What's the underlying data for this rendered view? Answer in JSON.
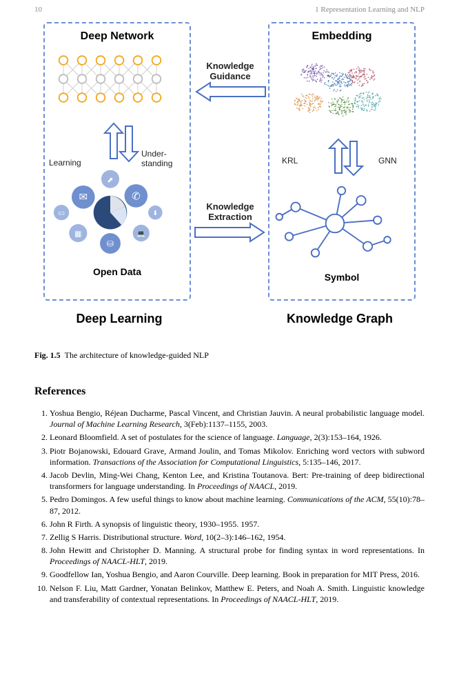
{
  "header": {
    "page_num": "10",
    "chapter": "1   Representation Learning and NLP"
  },
  "figure": {
    "panel_left_top": "Deep Network",
    "panel_left_bottom": "Open Data",
    "panel_right_top": "Embedding",
    "panel_right_bottom": "Symbol",
    "big_left": "Deep Learning",
    "big_right": "Knowledge Graph",
    "arrow_top_label1": "Knowledge",
    "arrow_top_label2": "Guidance",
    "arrow_bottom_label1": "Knowledge",
    "arrow_bottom_label2": "Extraction",
    "left_side_a": "Learning",
    "left_side_b1": "Under-",
    "left_side_b2": "standing",
    "right_side_a": "KRL",
    "right_side_b": "GNN",
    "colors": {
      "panel_border": "#6b8dd6",
      "nn_orange": "#f4a616",
      "nn_grey": "#bbbbbb",
      "arrow_stroke": "#4a6fc3",
      "icon_blue": "#5b7bc0",
      "icon_dark": "#2b4a7a",
      "embed_clusters": [
        "#6b4fa0",
        "#3f74b5",
        "#d28a3a",
        "#568c3f",
        "#b14d63",
        "#4aa1a8"
      ]
    },
    "opendata_icons": [
      "tablet",
      "mail",
      "chart",
      "phone",
      "grid",
      "pie",
      "download",
      "db",
      "laptop",
      "page"
    ]
  },
  "caption": {
    "label": "Fig. 1.5",
    "text": "The architecture of knowledge-guided NLP"
  },
  "refs_heading": "References",
  "refs": [
    {
      "n": 1,
      "authors": "Yoshua Bengio, Réjean Ducharme, Pascal Vincent, and Christian Jauvin.",
      "title": "A neural probabilistic language model.",
      "venue": "Journal of Machine Learning Research",
      "loc": ", 3(Feb):1137–1155, 2003."
    },
    {
      "n": 2,
      "authors": "Leonard Bloomfield.",
      "title": "A set of postulates for the science of language.",
      "venue": "Language",
      "loc": ", 2(3):153–164, 1926."
    },
    {
      "n": 3,
      "authors": "Piotr Bojanowski, Edouard Grave, Armand Joulin, and Tomas Mikolov.",
      "title": "Enriching word vectors with subword information.",
      "venue": "Transactions of the Association for Computational Linguistics",
      "loc": ", 5:135–146, 2017."
    },
    {
      "n": 4,
      "authors": "Jacob Devlin, Ming-Wei Chang, Kenton Lee, and Kristina Toutanova.",
      "title": "Bert: Pre-training of deep bidirectional transformers for language understanding.",
      "venue": "",
      "in": "In ",
      "proc": "Proceedings of NAACL",
      "loc": ", 2019."
    },
    {
      "n": 5,
      "authors": "Pedro Domingos.",
      "title": "A few useful things to know about machine learning.",
      "venue": "Communications of the ACM",
      "loc": ", 55(10):78–87, 2012."
    },
    {
      "n": 6,
      "authors": "John R Firth.",
      "title": "A synopsis of linguistic theory, 1930–1955. 1957.",
      "venue": "",
      "loc": ""
    },
    {
      "n": 7,
      "authors": "Zellig S Harris.",
      "title": "Distributional structure.",
      "venue": "Word",
      "loc": ", 10(2–3):146–162, 1954."
    },
    {
      "n": 8,
      "authors": "John Hewitt and Christopher D. Manning.",
      "title": "A structural probe for finding syntax in word representations.",
      "venue": "",
      "in": "In ",
      "proc": "Proceedings of NAACL-HLT",
      "loc": ", 2019."
    },
    {
      "n": 9,
      "authors": "Goodfellow Ian, Yoshua Bengio, and Aaron Courville.",
      "title": "Deep learning. Book in preparation for MIT Press, 2016.",
      "venue": "",
      "loc": ""
    },
    {
      "n": 10,
      "authors": "Nelson F. Liu, Matt Gardner, Yonatan Belinkov, Matthew E. Peters, and Noah A. Smith.",
      "title": "Linguistic knowledge and transferability of contextual representations.",
      "venue": "",
      "in": "In ",
      "proc": "Proceedings of NAACL-HLT",
      "loc": ", 2019."
    }
  ]
}
